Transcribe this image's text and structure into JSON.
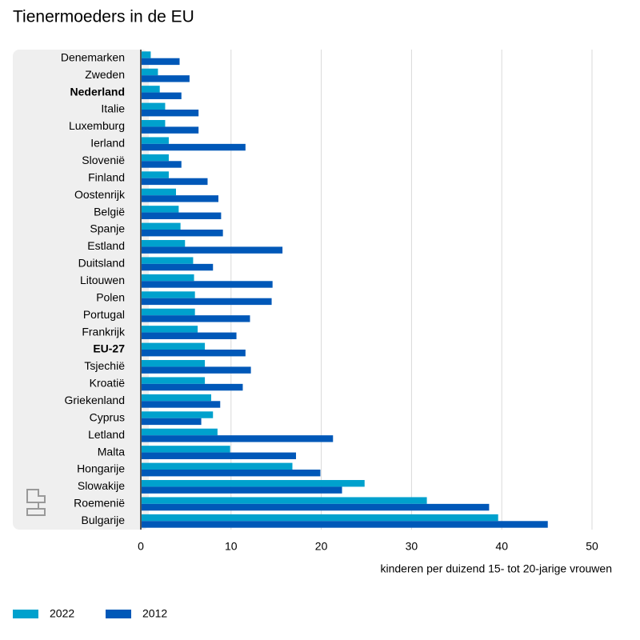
{
  "chart_data": {
    "type": "hbar",
    "title": "Tienermoeders in de EU",
    "x_label": "kinderen per duizend 15- tot 20-jarige vrouwen",
    "categories": [
      "Denemarken",
      "Zweden",
      "Nederland",
      "Italie",
      "Luxemburg",
      "Ierland",
      "Slovenië",
      "Finland",
      "Oostenrijk",
      "België",
      "Spanje",
      "Estland",
      "Duitsland",
      "Litouwen",
      "Polen",
      "Portugal",
      "Frankrijk",
      "EU-27",
      "Tsjechië",
      "Kroatië",
      "Griekenland",
      "Cyprus",
      "Letland",
      "Malta",
      "Hongarije",
      "Slowakije",
      "Roemenië",
      "Bulgarije"
    ],
    "bold_category_indices": [
      2,
      17
    ],
    "series": [
      {
        "name": "2022",
        "color": "#00a1cd",
        "values": [
          1.1,
          1.9,
          2.1,
          2.7,
          2.7,
          3.1,
          3.1,
          3.1,
          3.9,
          4.2,
          4.4,
          4.9,
          5.8,
          5.9,
          6.0,
          6.0,
          6.3,
          7.1,
          7.1,
          7.1,
          7.8,
          8.0,
          8.5,
          9.9,
          16.8,
          24.8,
          31.7,
          39.6
        ]
      },
      {
        "name": "2012",
        "color": "#0058b8",
        "values": [
          4.3,
          5.4,
          4.5,
          6.4,
          6.4,
          11.6,
          4.5,
          7.4,
          8.6,
          8.9,
          9.1,
          15.7,
          8.0,
          14.6,
          14.5,
          12.1,
          10.6,
          11.6,
          12.2,
          11.3,
          8.8,
          6.7,
          21.3,
          17.2,
          19.9,
          22.3,
          38.6,
          45.1
        ]
      }
    ],
    "xlim": [
      0,
      50
    ],
    "xticks": [
      0,
      10,
      20,
      30,
      40,
      50
    ],
    "grid": true,
    "legend": "bottom-left"
  }
}
